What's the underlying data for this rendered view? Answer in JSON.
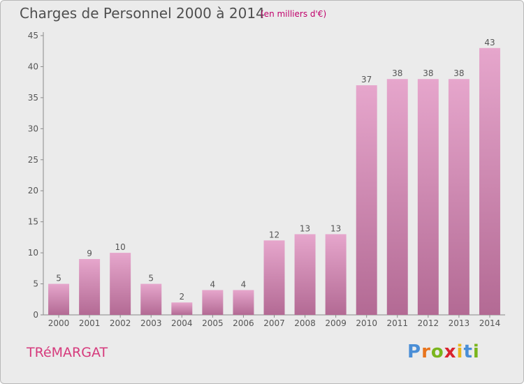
{
  "header": {
    "title": "Charges de Personnel 2000 à 2014",
    "subtitle": "(en milliers d'€)"
  },
  "footer": {
    "town": "TRéMARGAT",
    "brand": "Proxiti",
    "brand_colors": [
      "#4a8ed6",
      "#e8741c",
      "#7ab51d",
      "#d9232e",
      "#e8b71c",
      "#4a8ed6",
      "#7ab51d"
    ]
  },
  "chart_data": {
    "type": "bar",
    "categories": [
      "2000",
      "2001",
      "2002",
      "2003",
      "2004",
      "2005",
      "2006",
      "2007",
      "2008",
      "2009",
      "2010",
      "2011",
      "2012",
      "2013",
      "2014"
    ],
    "values": [
      5,
      9,
      10,
      5,
      2,
      4,
      4,
      12,
      13,
      13,
      37,
      38,
      38,
      38,
      43
    ],
    "ylim": [
      0,
      45
    ],
    "yticks": [
      0,
      5,
      10,
      15,
      20,
      25,
      30,
      35,
      40,
      45
    ],
    "grid": false,
    "bar_color_top": "#e6a6cc",
    "bar_color_bottom": "#b36a94"
  }
}
